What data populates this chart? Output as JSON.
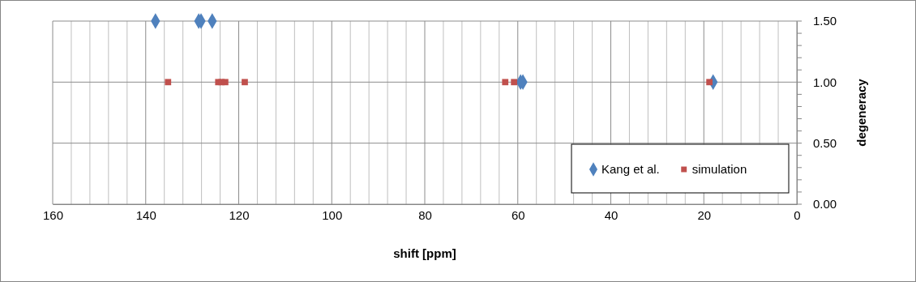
{
  "chart_data": {
    "type": "scatter",
    "xlabel": "shift [ppm]",
    "ylabel": "degeneracy",
    "xlim": [
      160,
      0
    ],
    "xticks": [
      160,
      {
        "value": 156,
        "label": null
      },
      {
        "value": 152,
        "label": null
      },
      {
        "value": 148,
        "label": null
      },
      {
        "value": 144,
        "label": null
      },
      140,
      {
        "value": 136,
        "label": null
      },
      {
        "value": 132,
        "label": null
      },
      {
        "value": 128,
        "label": null
      },
      {
        "value": 124,
        "label": null
      },
      120,
      {
        "value": 116,
        "label": null
      },
      {
        "value": 112,
        "label": null
      },
      {
        "value": 108,
        "label": null
      },
      {
        "value": 104,
        "label": null
      },
      100,
      {
        "value": 96,
        "label": null
      },
      {
        "value": 92,
        "label": null
      },
      {
        "value": 88,
        "label": null
      },
      {
        "value": 84,
        "label": null
      },
      80,
      {
        "value": 76,
        "label": null
      },
      {
        "value": 72,
        "label": null
      },
      {
        "value": 68,
        "label": null
      },
      {
        "value": 64,
        "label": null
      },
      60,
      {
        "value": 56,
        "label": null
      },
      {
        "value": 52,
        "label": null
      },
      {
        "value": 48,
        "label": null
      },
      {
        "value": 44,
        "label": null
      },
      40,
      {
        "value": 36,
        "label": null
      },
      {
        "value": 32,
        "label": null
      },
      {
        "value": 28,
        "label": null
      },
      {
        "value": 24,
        "label": null
      },
      20,
      {
        "value": 16,
        "label": null
      },
      {
        "value": 12,
        "label": null
      },
      {
        "value": 8,
        "label": null
      },
      {
        "value": 4,
        "label": null
      },
      0
    ],
    "ylim": [
      0,
      1.5
    ],
    "yticks": [
      {
        "value": 0,
        "label": "0.00"
      },
      {
        "value": 0.5,
        "label": "0.50"
      },
      {
        "value": 1,
        "label": "1.00"
      },
      {
        "value": 1.5,
        "label": "1.50"
      }
    ],
    "grid": true,
    "legend": "bottom right",
    "series": [
      {
        "name": "Kang et al.",
        "color": "#4f81bd",
        "marker": "diamond",
        "x": [
          137.9,
          128.6,
          128.1,
          125.7,
          59.4,
          58.9,
          18.0
        ],
        "values": [
          1.5,
          1.5,
          1.5,
          1.5,
          1,
          1,
          1
        ]
      },
      {
        "name": "simulation",
        "color": "#c0504d",
        "marker": "square",
        "x": [
          135.2,
          124.4,
          123.7,
          122.9,
          118.7,
          62.7,
          60.8,
          18.8
        ],
        "values": [
          1,
          1,
          1,
          1,
          1,
          1,
          1,
          1
        ]
      }
    ]
  }
}
